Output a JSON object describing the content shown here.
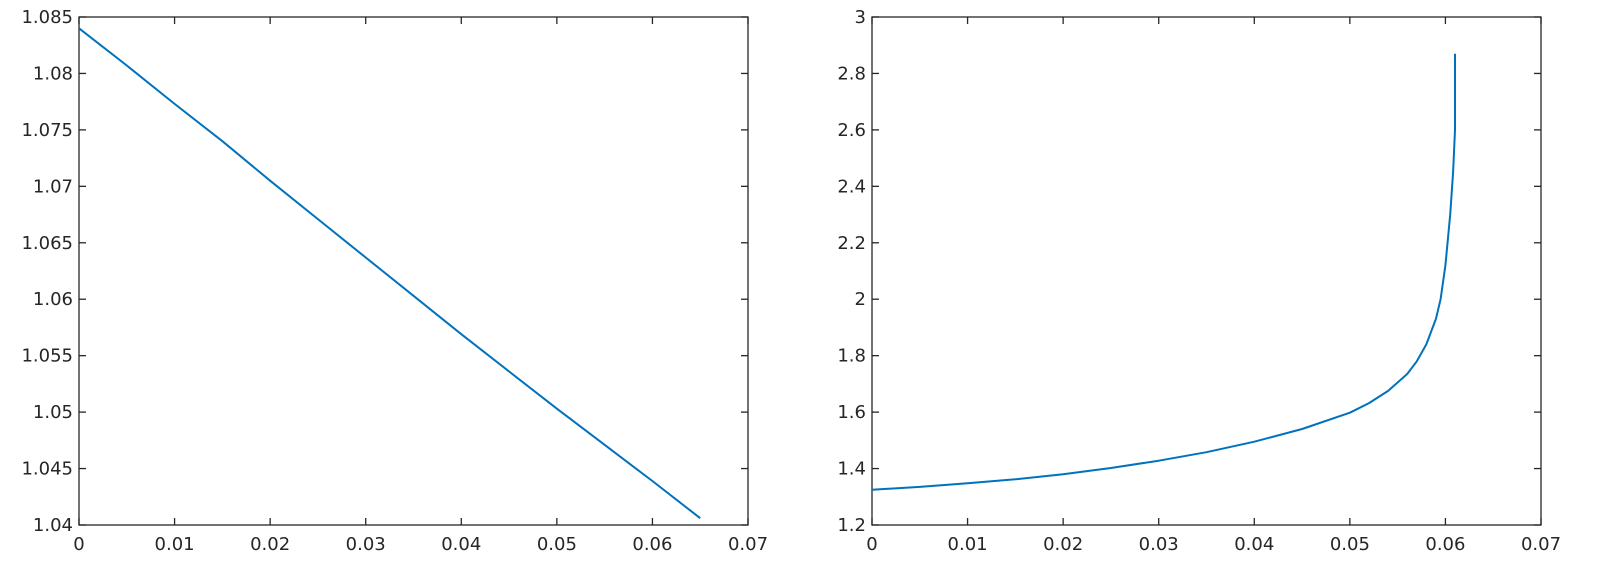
{
  "chart_data": [
    {
      "type": "line",
      "title": "",
      "xlabel": "",
      "ylabel": "",
      "xlim": [
        0,
        0.07
      ],
      "ylim": [
        1.04,
        1.085
      ],
      "xticks": [
        "0",
        "0.01",
        "0.02",
        "0.03",
        "0.04",
        "0.05",
        "0.06",
        "0.07"
      ],
      "yticks": [
        "1.04",
        "1.045",
        "1.05",
        "1.055",
        "1.06",
        "1.065",
        "1.07",
        "1.075",
        "1.08",
        "1.085"
      ],
      "grid": false,
      "color": "#0072BD",
      "series": [
        {
          "x": [
            0,
            0.005,
            0.01,
            0.015,
            0.02,
            0.025,
            0.03,
            0.035,
            0.04,
            0.045,
            0.05,
            0.055,
            0.06,
            0.065
          ],
          "y": [
            1.084,
            1.0807,
            1.0773,
            1.074,
            1.0705,
            1.0671,
            1.0637,
            1.0603,
            1.0569,
            1.0536,
            1.0503,
            1.0471,
            1.0439,
            1.0406
          ]
        }
      ]
    },
    {
      "type": "line",
      "title": "",
      "xlabel": "",
      "ylabel": "",
      "xlim": [
        0,
        0.07
      ],
      "ylim": [
        1.2,
        3
      ],
      "xticks": [
        "0",
        "0.01",
        "0.02",
        "0.03",
        "0.04",
        "0.05",
        "0.06",
        "0.07"
      ],
      "yticks": [
        "1.2",
        "1.4",
        "1.6",
        "1.8",
        "2",
        "2.2",
        "2.4",
        "2.6",
        "2.8",
        "3"
      ],
      "grid": false,
      "color": "#0072BD",
      "series": [
        {
          "x": [
            0,
            0.005,
            0.01,
            0.015,
            0.02,
            0.025,
            0.03,
            0.035,
            0.04,
            0.045,
            0.05,
            0.052,
            0.054,
            0.056,
            0.057,
            0.058,
            0.059,
            0.0595,
            0.06,
            0.0605,
            0.0608,
            0.061,
            0.061
          ],
          "y": [
            1.325,
            1.335,
            1.348,
            1.362,
            1.38,
            1.402,
            1.428,
            1.458,
            1.495,
            1.54,
            1.598,
            1.632,
            1.675,
            1.735,
            1.78,
            1.84,
            1.93,
            2.0,
            2.12,
            2.3,
            2.45,
            2.6,
            2.87
          ]
        }
      ]
    }
  ]
}
